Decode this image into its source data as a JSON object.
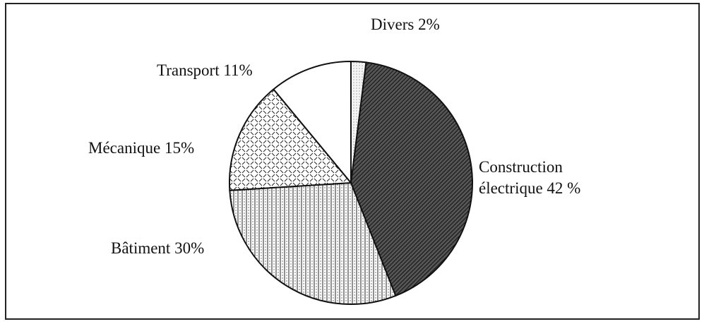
{
  "chart_data": {
    "type": "pie",
    "categories": [
      "Divers",
      "Construction électrique",
      "Bâtiment",
      "Mécanique",
      "Transport"
    ],
    "values": [
      2,
      42,
      30,
      15,
      11
    ],
    "value_labels": [
      "2%",
      "42 %",
      "30%",
      "15%",
      "11%"
    ]
  }
}
